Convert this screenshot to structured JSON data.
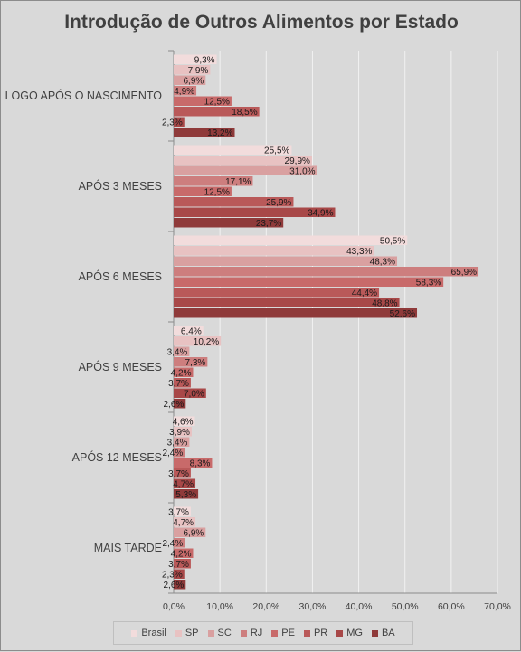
{
  "chart_data": {
    "type": "bar",
    "orientation": "horizontal",
    "title": "Introdução de Outros Alimentos por Estado",
    "categories": [
      "LOGO APÓS O NASCIMENTO",
      "APÓS 3 MESES",
      "APÓS 6 MESES",
      "APÓS 9 MESES",
      "APÓS 12 MESES",
      "MAIS TARDE"
    ],
    "series": [
      {
        "name": "Brasil",
        "color": "#f2dcdc",
        "values": [
          9.3,
          25.5,
          50.5,
          6.4,
          4.6,
          3.7
        ],
        "labels": [
          "9,3%",
          "25,5%",
          "50,5%",
          "6,4%",
          "4,6%",
          "3,7%"
        ]
      },
      {
        "name": "SP",
        "color": "#e8c2c2",
        "values": [
          7.9,
          29.9,
          43.3,
          10.2,
          3.9,
          4.7
        ],
        "labels": [
          "7,9%",
          "29,9%",
          "43,3%",
          "10,2%",
          "3,9%",
          "4,7%"
        ]
      },
      {
        "name": "SC",
        "color": "#d9a0a0",
        "values": [
          6.9,
          31.0,
          48.3,
          3.4,
          3.4,
          6.9
        ],
        "labels": [
          "6,9%",
          "31,0%",
          "48,3%",
          "3,4%",
          "3,4%",
          "6,9%"
        ]
      },
      {
        "name": "RJ",
        "color": "#cd7e7e",
        "values": [
          4.9,
          17.1,
          65.9,
          7.3,
          2.4,
          2.4
        ],
        "labels": [
          "4,9%",
          "17,1%",
          "65,9%",
          "7,3%",
          "2,4%",
          "2,4%"
        ]
      },
      {
        "name": "PE",
        "color": "#c86a6a",
        "values": [
          12.5,
          12.5,
          58.3,
          4.2,
          8.3,
          4.2
        ],
        "labels": [
          "12,5%",
          "12,5%",
          "58,3%",
          "4,2%",
          "8,3%",
          "4,2%"
        ]
      },
      {
        "name": "PR",
        "color": "#b95959",
        "values": [
          18.5,
          25.9,
          44.4,
          3.7,
          3.7,
          3.7
        ],
        "labels": [
          "18,5%",
          "25,9%",
          "44,4%",
          "3,7%",
          "3,7%",
          "3,7%"
        ]
      },
      {
        "name": "MG",
        "color": "#a84848",
        "values": [
          2.3,
          34.9,
          48.8,
          7.0,
          4.7,
          2.3
        ],
        "labels": [
          "2,3%",
          "34,9%",
          "48,8%",
          "7,0%",
          "4,7%",
          "2,3%"
        ]
      },
      {
        "name": "BA",
        "color": "#8f3a3a",
        "values": [
          13.2,
          23.7,
          52.6,
          2.6,
          5.3,
          2.6
        ],
        "labels": [
          "13,2%",
          "23,7%",
          "52,6%",
          "2,6%",
          "5,3%",
          "2,6%"
        ]
      }
    ],
    "x_ticks": [
      "0,0%",
      "10,0%",
      "20,0%",
      "30,0%",
      "40,0%",
      "50,0%",
      "60,0%",
      "70,0%"
    ],
    "xlim": [
      0,
      70
    ],
    "grid": true,
    "legend_position": "bottom"
  }
}
